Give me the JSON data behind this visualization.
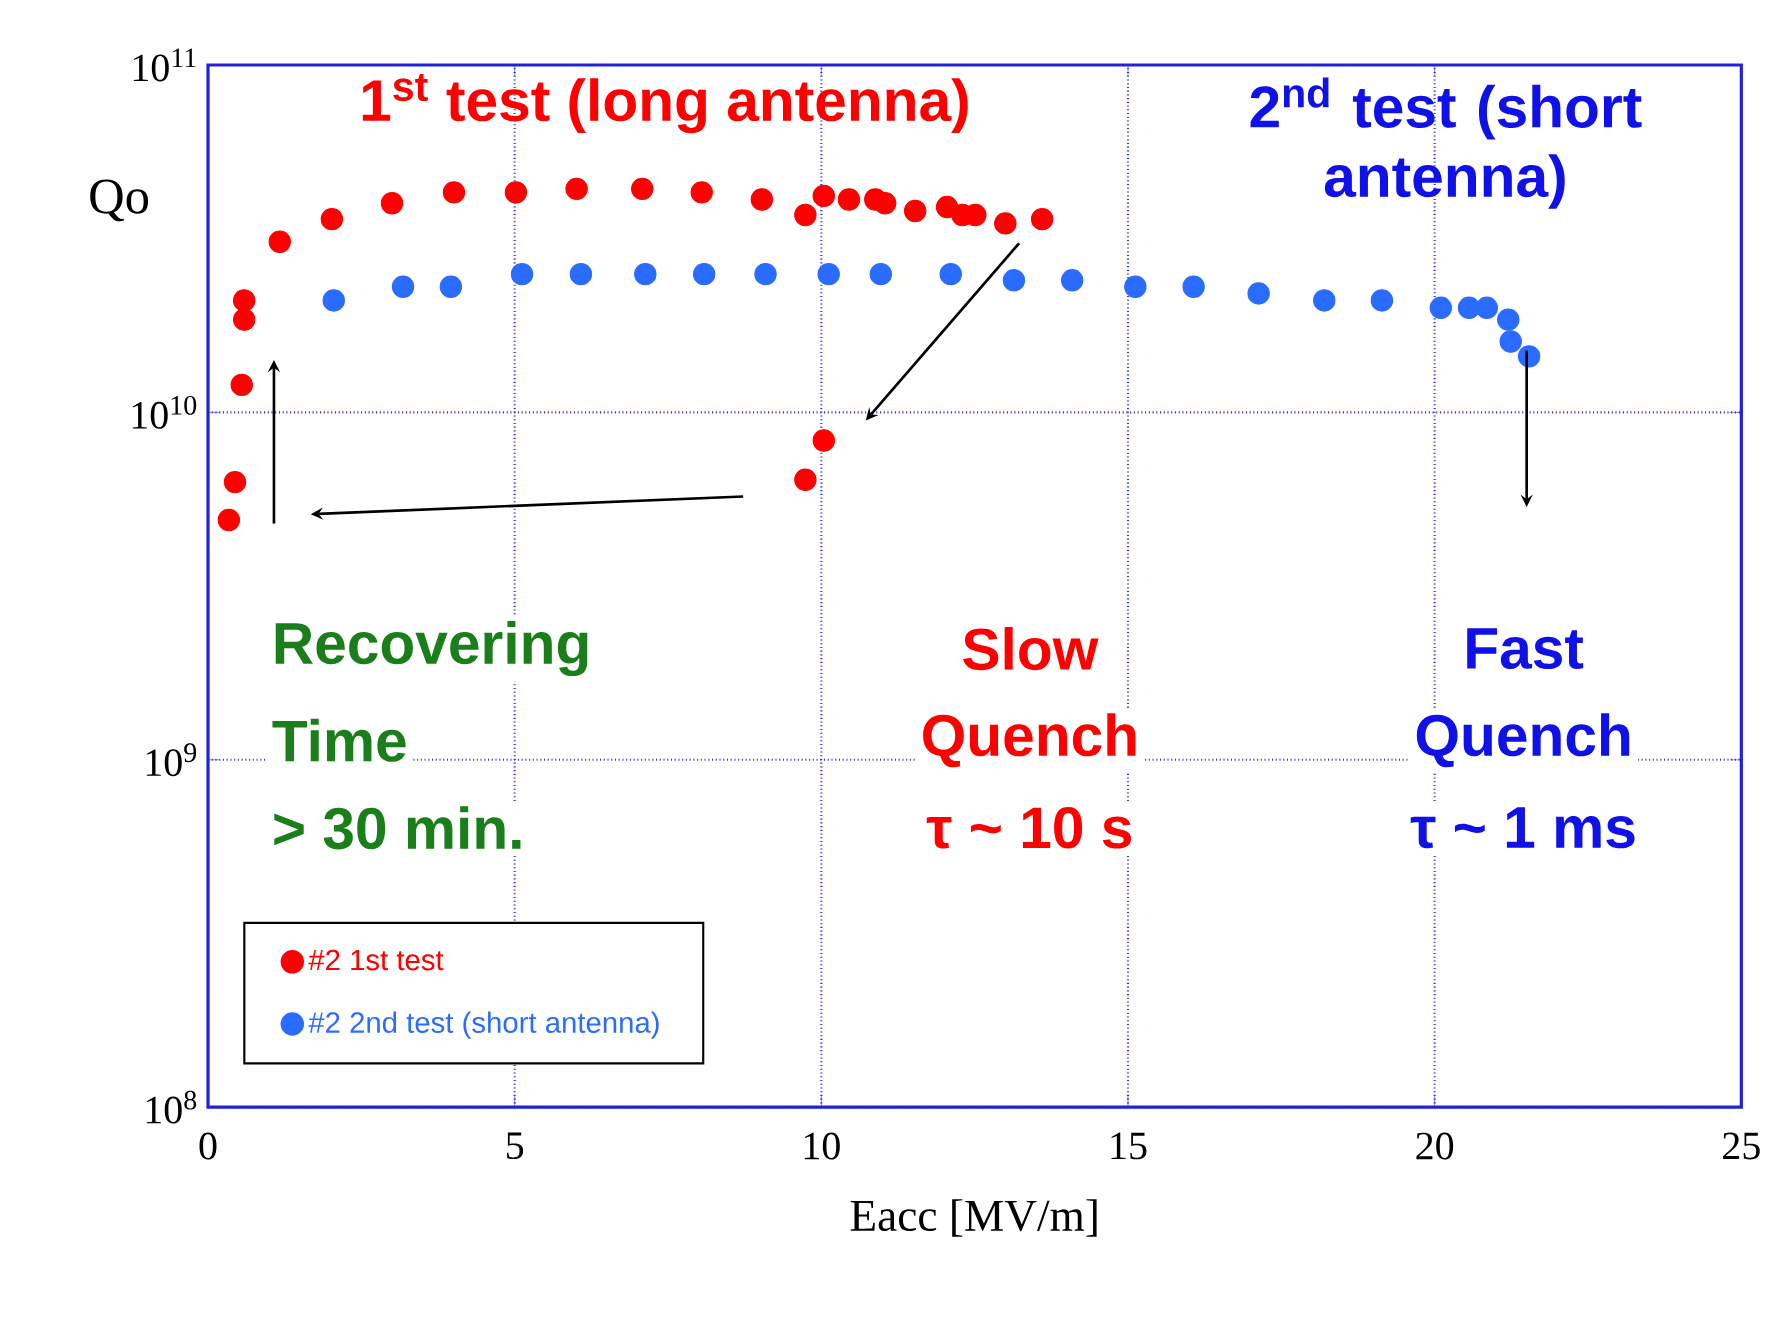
{
  "chart_data": {
    "type": "scatter",
    "xlabel": "Eacc  [MV/m]",
    "ylabel": "Qo",
    "xlim": [
      0,
      25
    ],
    "xticks": [
      0,
      5,
      10,
      15,
      20,
      25
    ],
    "ylim": [
      100000000.0,
      100000000000.0
    ],
    "log": "y",
    "yticks": [
      {
        "value": 100000000.0,
        "label": "10$^{8}$"
      },
      {
        "value": 1000000000.0,
        "label": "10$^{9}$"
      },
      {
        "value": 10000000000.0,
        "label": "10$^{10}$"
      },
      {
        "value": 100000000000.0,
        "label": "10$^{11}$"
      }
    ],
    "grid": true,
    "legend": "bottom left",
    "marker": "circle",
    "series": [
      {
        "name": "#2 1st test",
        "color": "#ff0000",
        "x": [
          0.34,
          0.44,
          0.55,
          0.59,
          0.59,
          1.17,
          2.02,
          3.0,
          4.01,
          5.02,
          6.01,
          7.08,
          8.05,
          9.03,
          9.74,
          10.04,
          10.45,
          10.88,
          11.04,
          11.53,
          12.05,
          12.3,
          12.51,
          13.0,
          13.6,
          9.74,
          10.04
        ],
        "values": [
          4900000000.0,
          6300000000.0,
          12000000000.0,
          18500000000.0,
          21000000000.0,
          31000000000.0,
          36000000000.0,
          40000000000.0,
          43000000000.0,
          43000000000.0,
          44000000000.0,
          44000000000.0,
          43000000000.0,
          41000000000.0,
          37000000000.0,
          42000000000.0,
          41000000000.0,
          41000000000.0,
          40000000000.0,
          38000000000.0,
          39000000000.0,
          37000000000.0,
          37000000000.0,
          35000000000.0,
          36000000000.0,
          6400000000.0,
          8300000000.0
        ]
      },
      {
        "name": "#2 2nd test (short antenna)",
        "color": "#2a6cff",
        "x": [
          2.05,
          3.18,
          3.96,
          5.12,
          6.08,
          7.13,
          8.09,
          9.09,
          10.12,
          10.97,
          12.11,
          13.14,
          14.09,
          15.12,
          16.07,
          17.13,
          18.2,
          19.14,
          20.1,
          20.56,
          20.85,
          21.2,
          21.24,
          21.54
        ],
        "values": [
          21000000000.0,
          23000000000.0,
          23000000000.0,
          25000000000.0,
          25000000000.0,
          25000000000.0,
          25000000000.0,
          25000000000.0,
          25000000000.0,
          25000000000.0,
          25000000000.0,
          24000000000.0,
          24000000000.0,
          23000000000.0,
          23000000000.0,
          22000000000.0,
          21000000000.0,
          21000000000.0,
          20000000000.0,
          20000000000.0,
          20000000000.0,
          18500000000.0,
          16000000000.0,
          14500000000.0
        ]
      }
    ],
    "annotations": [
      "1$^{st}$ test (long antenna)",
      "2$^{nd}$ test (short antenna)",
      "Recovering",
      "Time",
      "> 30 min.",
      "Slow",
      "Quench",
      "τ ~ 10 s",
      "Fast",
      "Quench",
      "τ ~ 1 ms"
    ]
  }
}
